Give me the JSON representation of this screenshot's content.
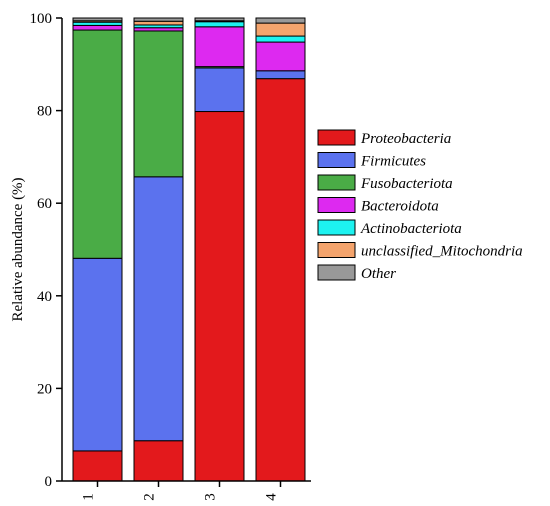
{
  "chart_data": {
    "type": "bar",
    "stacked": true,
    "categories": [
      "1",
      "2",
      "3",
      "4"
    ],
    "ylabel": "Relative abundance (%)",
    "xlabel": "",
    "ylim": [
      0,
      100
    ],
    "yticks": [
      0,
      20,
      40,
      60,
      80,
      100
    ],
    "grid": false,
    "legend_position": "right",
    "series": [
      {
        "name": "Proteobacteria",
        "color": "#e3191c",
        "values": [
          6.5,
          8.7,
          79.8,
          86.9
        ]
      },
      {
        "name": "Firmicutes",
        "color": "#5b72ee",
        "values": [
          41.6,
          57.0,
          9.4,
          1.7
        ]
      },
      {
        "name": "Fusobacteriota",
        "color": "#4aac46",
        "values": [
          49.3,
          31.5,
          0.3,
          0.0
        ]
      },
      {
        "name": "Bacteroidota",
        "color": "#dd29f0",
        "values": [
          1.0,
          0.7,
          8.6,
          6.2
        ]
      },
      {
        "name": "Actinobacteriota",
        "color": "#1df2f0",
        "values": [
          0.7,
          0.6,
          1.1,
          1.3
        ]
      },
      {
        "name": "unclassified_Mitochondria",
        "color": "#f4a46d",
        "values": [
          0.3,
          0.8,
          0.2,
          2.8
        ]
      },
      {
        "name": "Other",
        "color": "#999999",
        "values": [
          0.6,
          0.7,
          0.6,
          1.1
        ]
      }
    ]
  }
}
